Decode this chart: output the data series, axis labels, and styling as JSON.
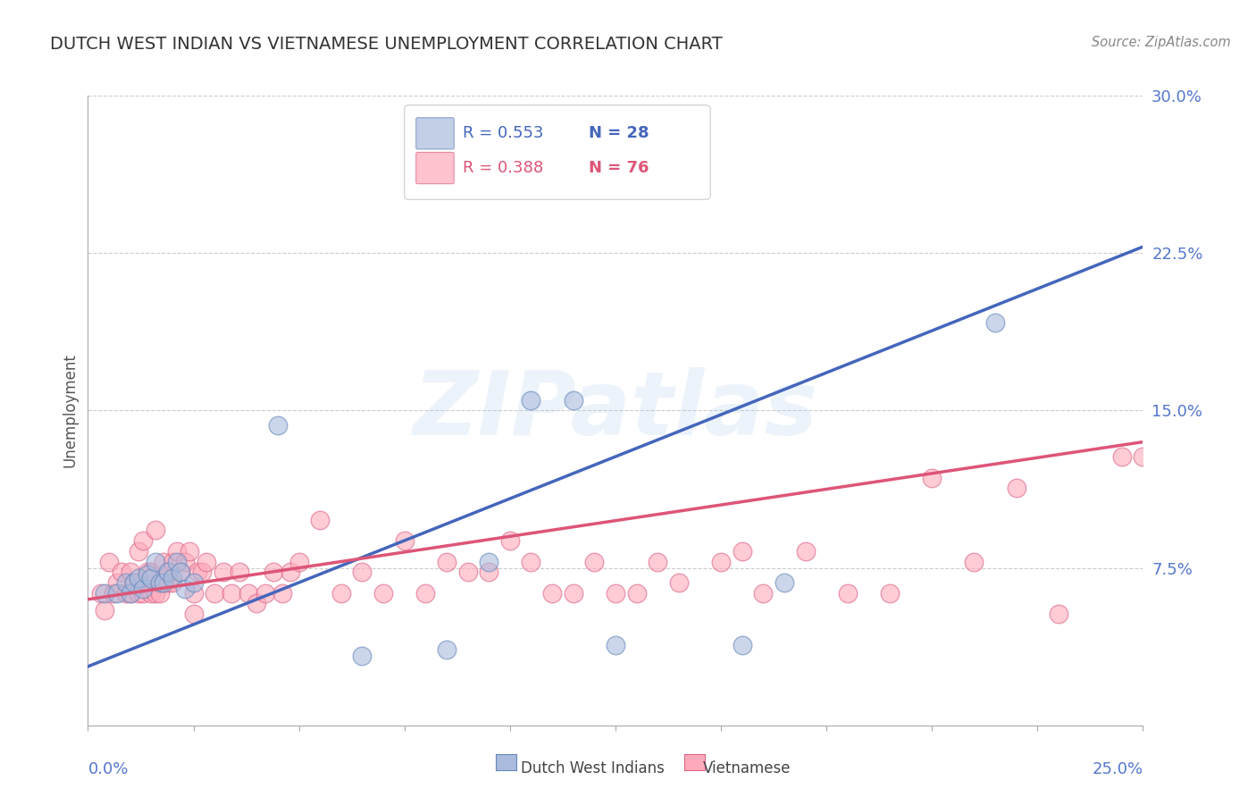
{
  "title": "DUTCH WEST INDIAN VS VIETNAMESE UNEMPLOYMENT CORRELATION CHART",
  "source": "Source: ZipAtlas.com",
  "ylabel": "Unemployment",
  "xlim": [
    0.0,
    0.25
  ],
  "ylim": [
    0.0,
    0.3
  ],
  "ytick_values": [
    0.075,
    0.15,
    0.225,
    0.3
  ],
  "ytick_labels": [
    "7.5%",
    "15.0%",
    "22.5%",
    "30.0%"
  ],
  "xtick_values": [
    0.0,
    0.025,
    0.05,
    0.075,
    0.1,
    0.125,
    0.15,
    0.175,
    0.2,
    0.225,
    0.25
  ],
  "blue_color": "#aabbdd",
  "blue_edge_color": "#6688bb",
  "pink_color": "#ffaabb",
  "pink_edge_color": "#dd6688",
  "blue_line_color": "#4466bb",
  "pink_line_color": "#dd5577",
  "legend_blue_R": "R = 0.553",
  "legend_blue_N": "N = 28",
  "legend_pink_R": "R = 0.388",
  "legend_pink_N": "N = 76",
  "blue_scatter_x": [
    0.004,
    0.007,
    0.009,
    0.01,
    0.011,
    0.012,
    0.013,
    0.014,
    0.015,
    0.016,
    0.017,
    0.018,
    0.019,
    0.02,
    0.021,
    0.022,
    0.023,
    0.025,
    0.045,
    0.065,
    0.085,
    0.095,
    0.105,
    0.115,
    0.125,
    0.155,
    0.165,
    0.215
  ],
  "blue_scatter_y": [
    0.063,
    0.063,
    0.068,
    0.063,
    0.068,
    0.07,
    0.065,
    0.072,
    0.07,
    0.078,
    0.068,
    0.068,
    0.073,
    0.07,
    0.078,
    0.073,
    0.065,
    0.068,
    0.143,
    0.033,
    0.036,
    0.078,
    0.155,
    0.155,
    0.038,
    0.038,
    0.068,
    0.192
  ],
  "pink_scatter_x": [
    0.003,
    0.004,
    0.005,
    0.006,
    0.007,
    0.008,
    0.009,
    0.01,
    0.01,
    0.011,
    0.012,
    0.012,
    0.013,
    0.013,
    0.014,
    0.015,
    0.015,
    0.016,
    0.016,
    0.017,
    0.018,
    0.018,
    0.019,
    0.019,
    0.02,
    0.02,
    0.021,
    0.022,
    0.023,
    0.024,
    0.025,
    0.025,
    0.026,
    0.027,
    0.028,
    0.03,
    0.032,
    0.034,
    0.036,
    0.038,
    0.04,
    0.042,
    0.044,
    0.046,
    0.048,
    0.05,
    0.055,
    0.06,
    0.065,
    0.07,
    0.075,
    0.08,
    0.085,
    0.09,
    0.095,
    0.1,
    0.105,
    0.11,
    0.115,
    0.12,
    0.125,
    0.13,
    0.135,
    0.14,
    0.15,
    0.155,
    0.16,
    0.17,
    0.18,
    0.19,
    0.2,
    0.21,
    0.22,
    0.23,
    0.245,
    0.25
  ],
  "pink_scatter_y": [
    0.063,
    0.055,
    0.078,
    0.063,
    0.068,
    0.073,
    0.063,
    0.073,
    0.063,
    0.068,
    0.063,
    0.083,
    0.063,
    0.088,
    0.073,
    0.063,
    0.073,
    0.063,
    0.093,
    0.063,
    0.068,
    0.078,
    0.068,
    0.073,
    0.068,
    0.078,
    0.083,
    0.073,
    0.078,
    0.083,
    0.053,
    0.063,
    0.073,
    0.073,
    0.078,
    0.063,
    0.073,
    0.063,
    0.073,
    0.063,
    0.058,
    0.063,
    0.073,
    0.063,
    0.073,
    0.078,
    0.098,
    0.063,
    0.073,
    0.063,
    0.088,
    0.063,
    0.078,
    0.073,
    0.073,
    0.088,
    0.078,
    0.063,
    0.063,
    0.078,
    0.063,
    0.063,
    0.078,
    0.068,
    0.078,
    0.083,
    0.063,
    0.083,
    0.063,
    0.063,
    0.118,
    0.078,
    0.113,
    0.053,
    0.128,
    0.128
  ],
  "blue_line_x0": 0.0,
  "blue_line_x1": 0.25,
  "blue_line_y0": 0.028,
  "blue_line_y1": 0.228,
  "pink_line_x0": 0.0,
  "pink_line_x1": 0.25,
  "pink_line_y0": 0.06,
  "pink_line_y1": 0.135,
  "watermark_text": "ZIPatlas",
  "background_color": "#ffffff",
  "grid_color": "#cccccc",
  "axis_color": "#aaaaaa",
  "tick_label_color": "#5577cc",
  "title_color": "#333333",
  "ylabel_color": "#555555",
  "source_color": "#888888"
}
